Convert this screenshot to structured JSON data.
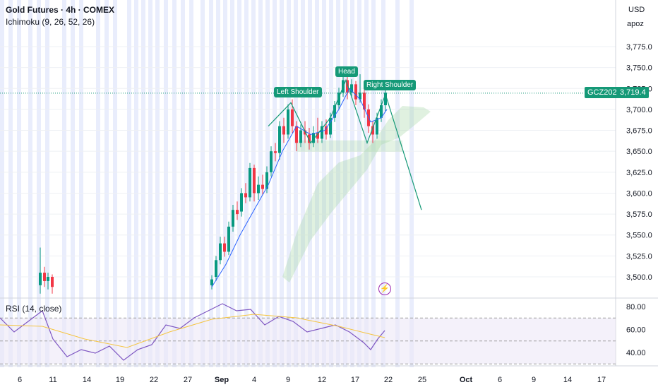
{
  "header": {
    "symbol_line": "Gold Futures · 4h · COMEX",
    "indicator_line": "Ichimoku (9, 26, 52, 26)",
    "currency": "USD",
    "user": "apoz"
  },
  "price_axis": {
    "ticks": [
      "3,775.0",
      "3,750.0",
      "3,725.0",
      "3,700.0",
      "3,675.0",
      "3,650.0",
      "3,625.0",
      "3,600.0",
      "3,575.0",
      "3,550.0",
      "3,525.0",
      "3,500.0"
    ],
    "tick_values": [
      3775,
      3750,
      3725,
      3700,
      3675,
      3650,
      3625,
      3600,
      3575,
      3550,
      3525,
      3500
    ]
  },
  "last_price": {
    "ticker": "GCZ2025",
    "value": "3,719.4",
    "numeric": 3719.4,
    "color": "#159977"
  },
  "pattern": {
    "left_shoulder": "Left Shoulder",
    "head": "Head",
    "right_shoulder": "Right Shoulder",
    "color": "#159977"
  },
  "rsi": {
    "title": "RSI (14, close)",
    "ticks": [
      "80.00",
      "60.00",
      "40.00"
    ],
    "tick_values": [
      80,
      60,
      40
    ],
    "line_color": "#7e57c2",
    "ma_color": "#f5c542"
  },
  "time_axis": {
    "labels": [
      "6",
      "11",
      "14",
      "19",
      "22",
      "27",
      "Sep",
      "4",
      "9",
      "12",
      "17",
      "22",
      "25",
      "Oct",
      "6",
      "9",
      "14",
      "17"
    ],
    "bold": [
      "Sep",
      "Oct"
    ]
  },
  "colors": {
    "up": "#089981",
    "down": "#f23645",
    "ichimoku_cloud": "#a5d6a7",
    "base_line": "#2962ff",
    "session_band": "#e3e8fb"
  },
  "icons": {
    "flash": "lightning-icon"
  }
}
